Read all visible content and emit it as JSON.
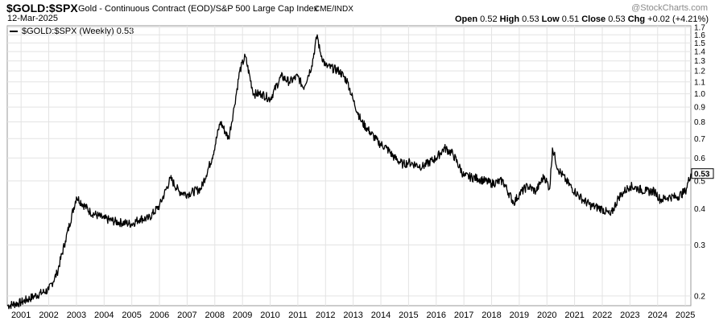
{
  "header": {
    "symbol": "$GOLD:$SPX",
    "description": "Gold - Continuous Contract (EOD)/S&P 500 Large Cap Index",
    "exchange": "CME/INDX",
    "date": "12-Mar-2025",
    "watermark": "@StockCharts.com",
    "ohlc": {
      "open_label": "Open",
      "open": "0.52",
      "high_label": "High",
      "high": "0.53",
      "low_label": "Low",
      "low": "0.51",
      "close_label": "Close",
      "close": "0.53",
      "chg_label": "Chg",
      "chg": "+0.02 (+4.21%)"
    },
    "legend_label": "$GOLD:$SPX (Weekly) 0.53"
  },
  "colors": {
    "line": "#000000",
    "grid": "#e3e3e3",
    "frame": "#9a9a9a",
    "last_box_border": "#000000"
  },
  "chart_data": {
    "type": "line",
    "scale": "log",
    "grid": true,
    "series": [
      {
        "name": "$GOLD:$SPX (Weekly)",
        "x": [
          2000.5,
          2001.0,
          2001.5,
          2002.0,
          2002.3,
          2002.6,
          2003.0,
          2003.5,
          2004.0,
          2004.5,
          2005.0,
          2005.3,
          2005.6,
          2006.0,
          2006.4,
          2006.7,
          2007.0,
          2007.5,
          2007.9,
          2008.2,
          2008.5,
          2008.7,
          2008.9,
          2009.1,
          2009.4,
          2009.7,
          2010.0,
          2010.4,
          2010.7,
          2011.0,
          2011.2,
          2011.5,
          2011.7,
          2011.8,
          2012.0,
          2012.5,
          2012.8,
          2013.0,
          2013.3,
          2013.6,
          2013.9,
          2014.2,
          2014.5,
          2014.8,
          2015.0,
          2015.5,
          2016.0,
          2016.3,
          2016.6,
          2017.0,
          2017.5,
          2018.0,
          2018.4,
          2018.8,
          2019.0,
          2019.3,
          2019.6,
          2019.9,
          2020.1,
          2020.2,
          2020.4,
          2020.7,
          2021.0,
          2021.3,
          2021.6,
          2022.0,
          2022.3,
          2022.6,
          2022.8,
          2023.0,
          2023.3,
          2023.6,
          2023.9,
          2024.1,
          2024.4,
          2024.7,
          2025.0,
          2025.2
        ],
        "values": [
          0.185,
          0.19,
          0.2,
          0.21,
          0.24,
          0.31,
          0.44,
          0.39,
          0.37,
          0.36,
          0.355,
          0.37,
          0.37,
          0.41,
          0.51,
          0.46,
          0.45,
          0.47,
          0.6,
          0.8,
          0.7,
          0.9,
          1.2,
          1.35,
          1.0,
          1.0,
          0.96,
          1.15,
          1.1,
          1.15,
          1.05,
          1.25,
          1.6,
          1.4,
          1.25,
          1.2,
          1.1,
          0.95,
          0.8,
          0.74,
          0.68,
          0.65,
          0.6,
          0.57,
          0.58,
          0.56,
          0.6,
          0.65,
          0.62,
          0.52,
          0.51,
          0.49,
          0.5,
          0.42,
          0.45,
          0.48,
          0.46,
          0.52,
          0.47,
          0.65,
          0.55,
          0.5,
          0.46,
          0.43,
          0.41,
          0.4,
          0.38,
          0.44,
          0.46,
          0.48,
          0.47,
          0.46,
          0.46,
          0.43,
          0.44,
          0.44,
          0.46,
          0.53
        ]
      }
    ],
    "x_ticks": [
      "2001",
      "2002",
      "2003",
      "2004",
      "2005",
      "2006",
      "2007",
      "2008",
      "2009",
      "2010",
      "2011",
      "2012",
      "2013",
      "2014",
      "2015",
      "2016",
      "2017",
      "2018",
      "2019",
      "2020",
      "2021",
      "2022",
      "2023",
      "2024",
      "2025"
    ],
    "y_ticks": [
      "0.2",
      "0.3",
      "0.4",
      "0.5",
      "0.6",
      "0.7",
      "0.8",
      "0.9",
      "1.0",
      "1.1",
      "1.2",
      "1.3",
      "1.4",
      "1.5",
      "1.6",
      "1.7"
    ],
    "last_value": "0.53",
    "ylim": [
      0.185,
      1.72
    ],
    "xlim": [
      2000.5,
      2025.2
    ]
  }
}
